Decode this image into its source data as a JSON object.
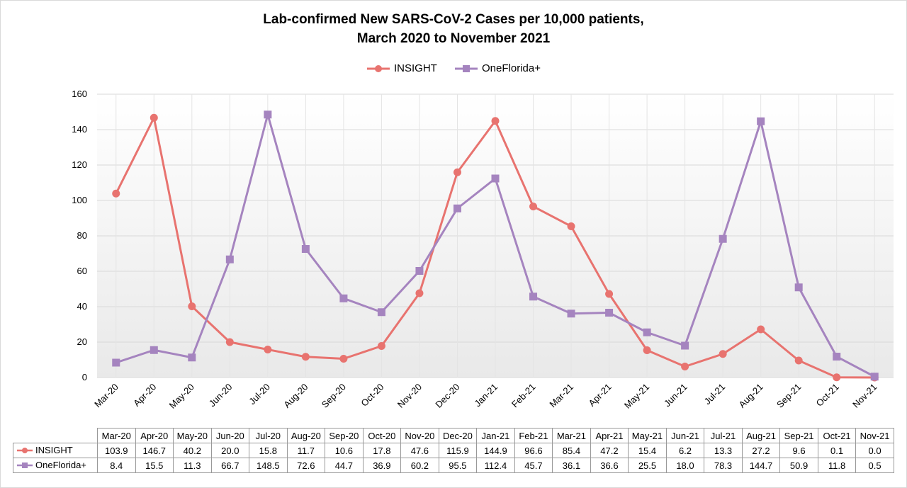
{
  "chart_data": {
    "type": "line",
    "title": [
      "Lab-confirmed New SARS-CoV-2 Cases per 10,000 patients,",
      "March 2020 to November 2021"
    ],
    "categories": [
      "Mar-20",
      "Apr-20",
      "May-20",
      "Jun-20",
      "Jul-20",
      "Aug-20",
      "Sep-20",
      "Oct-20",
      "Nov-20",
      "Dec-20",
      "Jan-21",
      "Feb-21",
      "Mar-21",
      "Apr-21",
      "May-21",
      "Jun-21",
      "Jul-21",
      "Aug-21",
      "Sep-21",
      "Oct-21",
      "Nov-21"
    ],
    "series": [
      {
        "name": "INSIGHT",
        "color": "#e8736f",
        "marker": "circle",
        "values": [
          103.9,
          146.7,
          40.2,
          20.0,
          15.8,
          11.7,
          10.6,
          17.8,
          47.6,
          115.9,
          144.9,
          96.6,
          85.4,
          47.2,
          15.4,
          6.2,
          13.3,
          27.2,
          9.6,
          0.1,
          0.0
        ],
        "labels": [
          "103.9",
          "146.7",
          "40.2",
          "20.0",
          "15.8",
          "11.7",
          "10.6",
          "17.8",
          "47.6",
          "115.9",
          "144.9",
          "96.6",
          "85.4",
          "47.2",
          "15.4",
          "6.2",
          "13.3",
          "27.2",
          "9.6",
          "0.1",
          "0.0"
        ]
      },
      {
        "name": "OneFlorida+",
        "color": "#a584bf",
        "marker": "square",
        "values": [
          8.4,
          15.5,
          11.3,
          66.7,
          148.5,
          72.6,
          44.7,
          36.9,
          60.2,
          95.5,
          112.4,
          45.7,
          36.1,
          36.6,
          25.5,
          18.0,
          78.3,
          144.7,
          50.9,
          11.8,
          0.5
        ],
        "labels": [
          "8.4",
          "15.5",
          "11.3",
          "66.7",
          "148.5",
          "72.6",
          "44.7",
          "36.9",
          "60.2",
          "95.5",
          "112.4",
          "45.7",
          "36.1",
          "36.6",
          "25.5",
          "18.0",
          "78.3",
          "144.7",
          "50.9",
          "11.8",
          "0.5"
        ]
      }
    ],
    "ylim": [
      0,
      160
    ],
    "yticks": [
      "0",
      "20",
      "40",
      "60",
      "80",
      "100",
      "120",
      "140",
      "160"
    ],
    "grid": true,
    "legend_position": "top",
    "data_table": true
  }
}
